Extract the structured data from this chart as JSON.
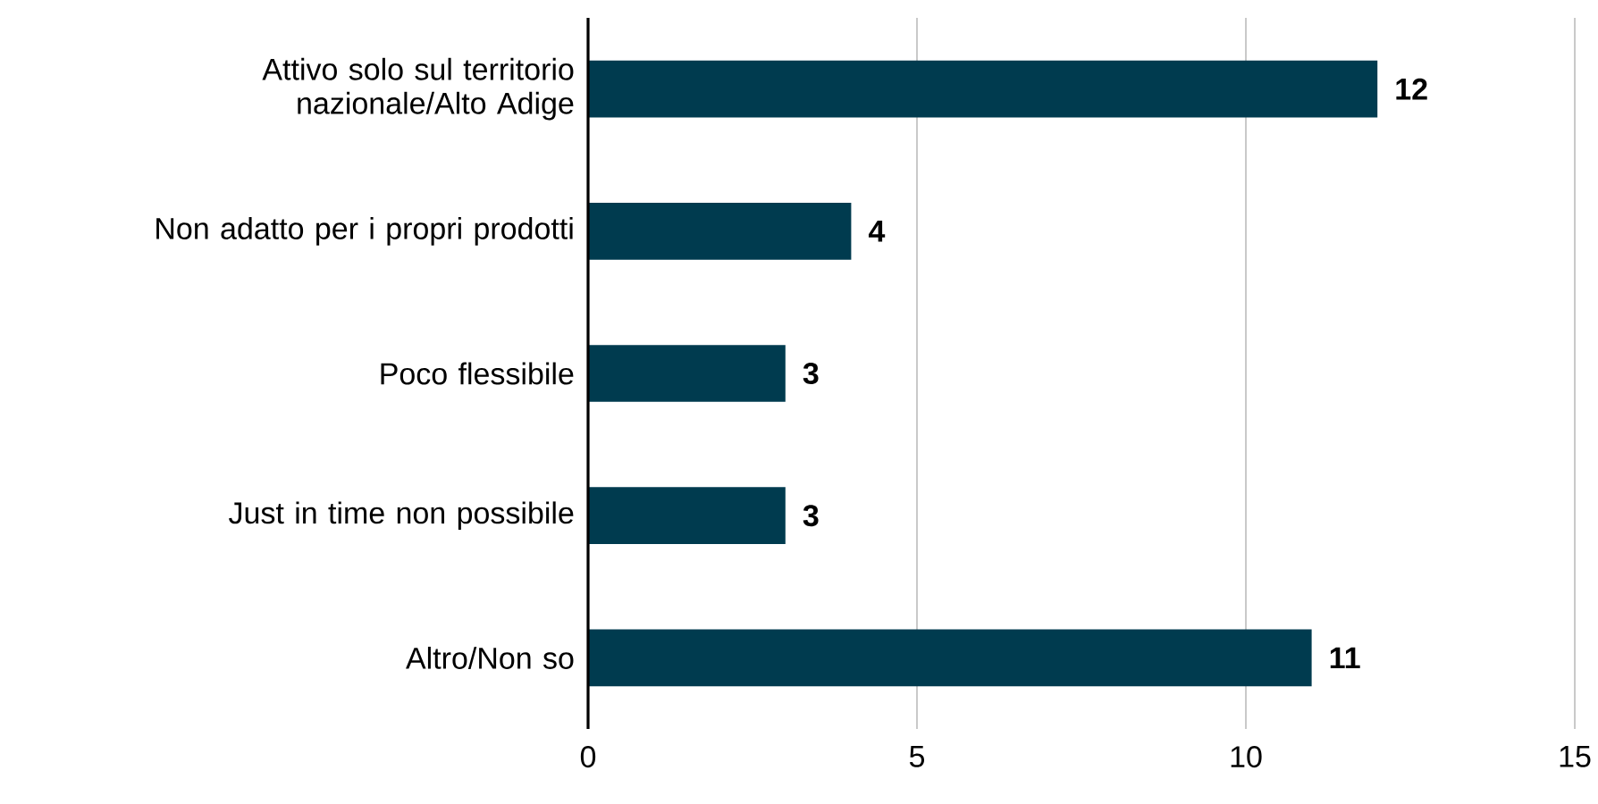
{
  "chart_data": {
    "type": "bar",
    "orientation": "horizontal",
    "categories": [
      "Attivo solo sul territorio nazionale/Alto Adige",
      "Non adatto per i propri prodotti",
      "Poco flessibile",
      "Just in time non possibile",
      "Altro/Non so"
    ],
    "values": [
      12,
      4,
      3,
      3,
      11
    ],
    "color": "#003b4f",
    "xlim": [
      0,
      15
    ],
    "xticks": [
      0,
      5,
      10,
      15
    ],
    "grid": "x",
    "data_labels": true
  }
}
